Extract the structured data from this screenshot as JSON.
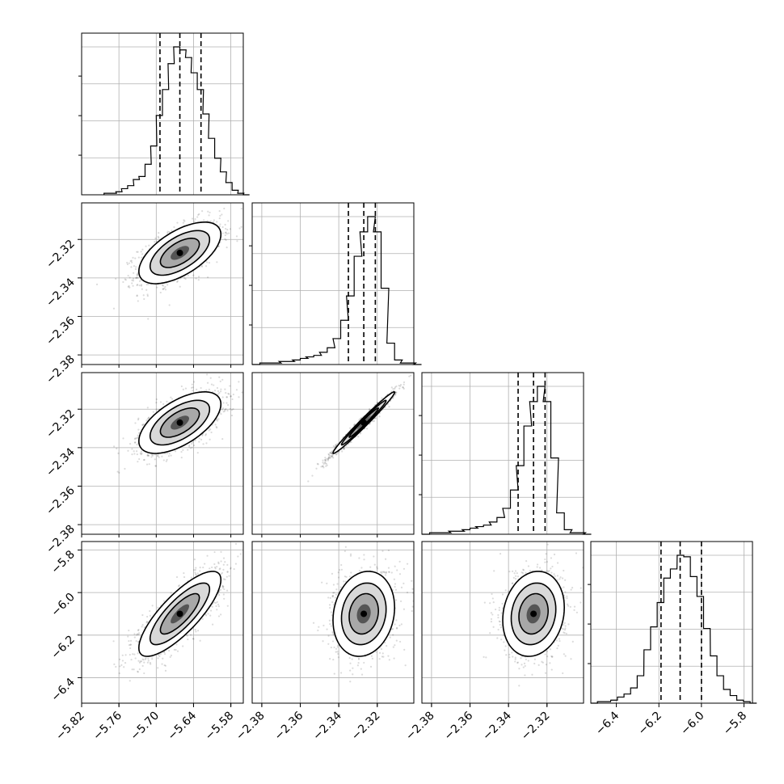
{
  "chart_data": {
    "type": "corner",
    "grid": true,
    "parameters": [
      {
        "name": "",
        "range": [
          -5.82,
          -5.56
        ],
        "ticks": [
          -5.82,
          -5.76,
          -5.7,
          -5.64,
          -5.58
        ],
        "tick_labels": [
          "−5.82",
          "−5.76",
          "−5.70",
          "−5.64",
          "−5.58"
        ],
        "quantiles": [
          -5.694,
          -5.662,
          -5.628
        ],
        "hist_x": [
          -5.784,
          -5.774,
          -5.765,
          -5.756,
          -5.746,
          -5.737,
          -5.728,
          -5.718,
          -5.709,
          -5.7,
          -5.69,
          -5.681,
          -5.672,
          -5.662,
          -5.653,
          -5.644,
          -5.634,
          -5.625,
          -5.616,
          -5.606,
          -5.597,
          -5.588,
          -5.578,
          -5.569,
          -5.56
        ],
        "hist_y": [
          0.01,
          0.01,
          0.02,
          0.04,
          0.06,
          0.1,
          0.12,
          0.2,
          0.32,
          0.52,
          0.69,
          0.86,
          0.97,
          0.95,
          0.9,
          0.8,
          0.69,
          0.53,
          0.37,
          0.24,
          0.15,
          0.08,
          0.03,
          0.01,
          0.0
        ]
      },
      {
        "name": "",
        "range": [
          -2.385,
          -2.301
        ],
        "ticks": [
          -2.38,
          -2.36,
          -2.34,
          -2.32
        ],
        "tick_labels": [
          "−2.38",
          "−2.36",
          "−2.34",
          "−2.32"
        ],
        "quantiles": [
          -2.335,
          -2.327,
          -2.321
        ],
        "hist_x": [
          -2.385,
          -2.381,
          -2.378,
          -2.374,
          -2.371,
          -2.367,
          -2.364,
          -2.36,
          -2.357,
          -2.353,
          -2.35,
          -2.346,
          -2.343,
          -2.339,
          -2.336,
          -2.332,
          -2.329,
          -2.325,
          -2.322,
          -2.318,
          -2.315,
          -2.311,
          -2.308,
          -2.304,
          -2.301
        ],
        "hist_y": [
          0.0,
          0.01,
          0.01,
          0.01,
          0.02,
          0.02,
          0.03,
          0.04,
          0.05,
          0.06,
          0.08,
          0.11,
          0.17,
          0.29,
          0.45,
          0.71,
          0.87,
          0.97,
          0.87,
          0.5,
          0.14,
          0.03,
          0.01,
          0.01,
          0.0
        ]
      },
      {
        "name": "",
        "range": [
          -2.385,
          -2.301
        ],
        "ticks": [
          -2.38,
          -2.36,
          -2.34,
          -2.32
        ],
        "tick_labels": [
          "−2.38",
          "−2.36",
          "−2.34",
          "−2.32"
        ],
        "quantiles": [
          -2.335,
          -2.327,
          -2.321
        ],
        "hist_x": [
          -2.385,
          -2.381,
          -2.378,
          -2.374,
          -2.371,
          -2.367,
          -2.364,
          -2.36,
          -2.357,
          -2.353,
          -2.35,
          -2.346,
          -2.343,
          -2.339,
          -2.336,
          -2.332,
          -2.329,
          -2.325,
          -2.322,
          -2.318,
          -2.315,
          -2.311,
          -2.308,
          -2.304,
          -2.301
        ],
        "hist_y": [
          0.0,
          0.01,
          0.01,
          0.01,
          0.02,
          0.02,
          0.03,
          0.04,
          0.05,
          0.06,
          0.08,
          0.11,
          0.17,
          0.29,
          0.45,
          0.71,
          0.87,
          0.97,
          0.87,
          0.5,
          0.14,
          0.03,
          0.01,
          0.01,
          0.0
        ]
      },
      {
        "name": "",
        "range": [
          -6.52,
          -5.76
        ],
        "ticks": [
          -6.4,
          -6.2,
          -6.0,
          -5.8
        ],
        "tick_labels": [
          "−6.4",
          "−6.2",
          "−6.0",
          "−5.8"
        ],
        "quantiles": [
          -6.19,
          -6.1,
          -6.0
        ],
        "hist_x": [
          -6.52,
          -6.489,
          -6.458,
          -6.426,
          -6.395,
          -6.364,
          -6.333,
          -6.302,
          -6.27,
          -6.239,
          -6.208,
          -6.177,
          -6.146,
          -6.114,
          -6.083,
          -6.052,
          -6.021,
          -5.99,
          -5.958,
          -5.927,
          -5.896,
          -5.865,
          -5.834,
          -5.802,
          -5.771
        ],
        "hist_y": [
          0.0,
          0.01,
          0.01,
          0.02,
          0.04,
          0.06,
          0.1,
          0.18,
          0.35,
          0.5,
          0.66,
          0.82,
          0.88,
          0.97,
          0.96,
          0.83,
          0.7,
          0.49,
          0.31,
          0.18,
          0.09,
          0.05,
          0.02,
          0.01,
          0.0
        ]
      }
    ],
    "pairs": [
      {
        "row": 1,
        "col": 0,
        "mean": [
          -5.662,
          -2.327
        ],
        "std": [
          0.033,
          0.008
        ],
        "rho": 0.6
      },
      {
        "row": 2,
        "col": 0,
        "mean": [
          -5.662,
          -2.327
        ],
        "std": [
          0.033,
          0.008
        ],
        "rho": 0.6
      },
      {
        "row": 2,
        "col": 1,
        "mean": [
          -2.327,
          -2.327
        ],
        "std": [
          0.008,
          0.008
        ],
        "rho": 0.985
      },
      {
        "row": 3,
        "col": 0,
        "mean": [
          -5.662,
          -6.1
        ],
        "std": [
          0.033,
          0.1
        ],
        "rho": 0.8
      },
      {
        "row": 3,
        "col": 1,
        "mean": [
          -2.327,
          -6.1
        ],
        "std": [
          0.008,
          0.1
        ],
        "rho": 0.15
      },
      {
        "row": 3,
        "col": 2,
        "mean": [
          -2.327,
          -6.1
        ],
        "std": [
          0.008,
          0.1
        ],
        "rho": 0.15
      }
    ]
  }
}
